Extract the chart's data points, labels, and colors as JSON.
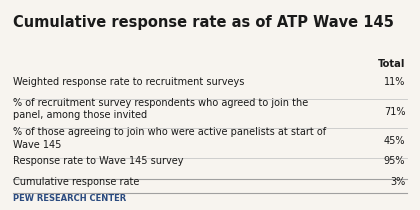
{
  "title": "Cumulative response rate as of ATP Wave 145",
  "col_header": "Total",
  "rows": [
    {
      "label": "Weighted response rate to recruitment surveys",
      "value": "11%",
      "two_lines": false
    },
    {
      "label": "% of recruitment survey respondents who agreed to join the\npanel, among those invited",
      "value": "71%",
      "two_lines": true
    },
    {
      "label": "% of those agreeing to join who were active panelists at start of\nWave 145",
      "value": "45%",
      "two_lines": true
    },
    {
      "label": "Response rate to Wave 145 survey",
      "value": "95%",
      "two_lines": false
    },
    {
      "label": "Cumulative response rate",
      "value": "3%",
      "two_lines": false,
      "bold": false
    }
  ],
  "footer": "PEW RESEARCH CENTER",
  "bg_color": "#f7f4ef",
  "title_color": "#1a1a1a",
  "text_color": "#1a1a1a",
  "header_color": "#1a1a1a",
  "footer_color": "#2a4a7f",
  "divider_color": "#c8c8c8",
  "strong_divider_color": "#a0a0a0",
  "title_fontsize": 10.5,
  "header_fontsize": 7.2,
  "row_fontsize": 7.0,
  "footer_fontsize": 6.0
}
